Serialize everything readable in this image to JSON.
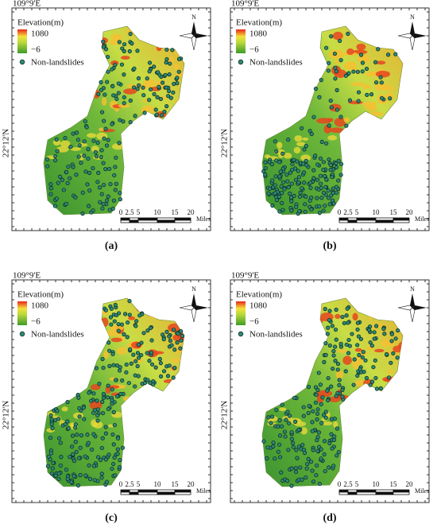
{
  "panels": [
    {
      "lon_label": "109°9'E",
      "lat_label": "22°12'N",
      "legend_title": "Elevation(m)",
      "legend_max": "1080",
      "legend_min": "−6",
      "points_label": "Non-landslides",
      "north": "N",
      "scale_ticks": [
        "0",
        "2.5",
        "5",
        "10",
        "15",
        "20"
      ],
      "scale_unit": "Miles",
      "caption": "(a)"
    },
    {
      "lon_label": "109°9'E",
      "lat_label": "22°12'N",
      "legend_title": "Elevation(m)",
      "legend_max": "1080",
      "legend_min": "−6",
      "points_label": "Non-landslides",
      "north": "N",
      "scale_ticks": [
        "0",
        "2.5",
        "5",
        "10",
        "15",
        "20"
      ],
      "scale_unit": "Miles",
      "caption": "(b)"
    },
    {
      "lon_label": "109°9'E",
      "lat_label": "22°12'N",
      "legend_title": "Elevation(m)",
      "legend_max": "1080",
      "legend_min": "−6",
      "points_label": "Non-landslides",
      "north": "N",
      "scale_ticks": [
        "0",
        "2.5",
        "5",
        "10",
        "15",
        "20"
      ],
      "scale_unit": "Miles",
      "caption": "(c)"
    },
    {
      "lon_label": "109°9'E",
      "lat_label": "22°12'N",
      "legend_title": "Elevation(m)",
      "legend_max": "1080",
      "legend_min": "−6",
      "points_label": "Non-landslides",
      "north": "N",
      "scale_ticks": [
        "0",
        "2.5",
        "5",
        "10",
        "15",
        "20"
      ],
      "scale_unit": "Miles",
      "caption": "(d)"
    }
  ]
}
